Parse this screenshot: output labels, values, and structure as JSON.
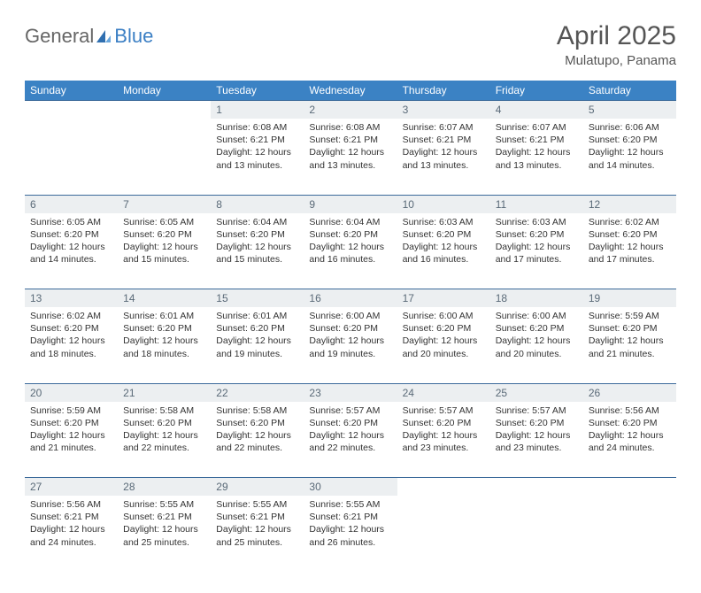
{
  "logo": {
    "text1": "General",
    "text2": "Blue"
  },
  "title": {
    "month": "April 2025",
    "location": "Mulatupo, Panama"
  },
  "colors": {
    "header_bg": "#3b82c4",
    "header_text": "#ffffff",
    "daynum_bg": "#eceff1",
    "daynum_text": "#5a6a78",
    "body_text": "#333333",
    "rule": "#3b6a9a",
    "logo_gray": "#666666",
    "logo_blue": "#3b7fc4"
  },
  "weekdays": [
    "Sunday",
    "Monday",
    "Tuesday",
    "Wednesday",
    "Thursday",
    "Friday",
    "Saturday"
  ],
  "weeks": [
    {
      "nums": [
        "",
        "",
        "1",
        "2",
        "3",
        "4",
        "5"
      ],
      "cells": [
        null,
        null,
        {
          "sunrise": "Sunrise: 6:08 AM",
          "sunset": "Sunset: 6:21 PM",
          "d1": "Daylight: 12 hours",
          "d2": "and 13 minutes."
        },
        {
          "sunrise": "Sunrise: 6:08 AM",
          "sunset": "Sunset: 6:21 PM",
          "d1": "Daylight: 12 hours",
          "d2": "and 13 minutes."
        },
        {
          "sunrise": "Sunrise: 6:07 AM",
          "sunset": "Sunset: 6:21 PM",
          "d1": "Daylight: 12 hours",
          "d2": "and 13 minutes."
        },
        {
          "sunrise": "Sunrise: 6:07 AM",
          "sunset": "Sunset: 6:21 PM",
          "d1": "Daylight: 12 hours",
          "d2": "and 13 minutes."
        },
        {
          "sunrise": "Sunrise: 6:06 AM",
          "sunset": "Sunset: 6:20 PM",
          "d1": "Daylight: 12 hours",
          "d2": "and 14 minutes."
        }
      ]
    },
    {
      "nums": [
        "6",
        "7",
        "8",
        "9",
        "10",
        "11",
        "12"
      ],
      "cells": [
        {
          "sunrise": "Sunrise: 6:05 AM",
          "sunset": "Sunset: 6:20 PM",
          "d1": "Daylight: 12 hours",
          "d2": "and 14 minutes."
        },
        {
          "sunrise": "Sunrise: 6:05 AM",
          "sunset": "Sunset: 6:20 PM",
          "d1": "Daylight: 12 hours",
          "d2": "and 15 minutes."
        },
        {
          "sunrise": "Sunrise: 6:04 AM",
          "sunset": "Sunset: 6:20 PM",
          "d1": "Daylight: 12 hours",
          "d2": "and 15 minutes."
        },
        {
          "sunrise": "Sunrise: 6:04 AM",
          "sunset": "Sunset: 6:20 PM",
          "d1": "Daylight: 12 hours",
          "d2": "and 16 minutes."
        },
        {
          "sunrise": "Sunrise: 6:03 AM",
          "sunset": "Sunset: 6:20 PM",
          "d1": "Daylight: 12 hours",
          "d2": "and 16 minutes."
        },
        {
          "sunrise": "Sunrise: 6:03 AM",
          "sunset": "Sunset: 6:20 PM",
          "d1": "Daylight: 12 hours",
          "d2": "and 17 minutes."
        },
        {
          "sunrise": "Sunrise: 6:02 AM",
          "sunset": "Sunset: 6:20 PM",
          "d1": "Daylight: 12 hours",
          "d2": "and 17 minutes."
        }
      ]
    },
    {
      "nums": [
        "13",
        "14",
        "15",
        "16",
        "17",
        "18",
        "19"
      ],
      "cells": [
        {
          "sunrise": "Sunrise: 6:02 AM",
          "sunset": "Sunset: 6:20 PM",
          "d1": "Daylight: 12 hours",
          "d2": "and 18 minutes."
        },
        {
          "sunrise": "Sunrise: 6:01 AM",
          "sunset": "Sunset: 6:20 PM",
          "d1": "Daylight: 12 hours",
          "d2": "and 18 minutes."
        },
        {
          "sunrise": "Sunrise: 6:01 AM",
          "sunset": "Sunset: 6:20 PM",
          "d1": "Daylight: 12 hours",
          "d2": "and 19 minutes."
        },
        {
          "sunrise": "Sunrise: 6:00 AM",
          "sunset": "Sunset: 6:20 PM",
          "d1": "Daylight: 12 hours",
          "d2": "and 19 minutes."
        },
        {
          "sunrise": "Sunrise: 6:00 AM",
          "sunset": "Sunset: 6:20 PM",
          "d1": "Daylight: 12 hours",
          "d2": "and 20 minutes."
        },
        {
          "sunrise": "Sunrise: 6:00 AM",
          "sunset": "Sunset: 6:20 PM",
          "d1": "Daylight: 12 hours",
          "d2": "and 20 minutes."
        },
        {
          "sunrise": "Sunrise: 5:59 AM",
          "sunset": "Sunset: 6:20 PM",
          "d1": "Daylight: 12 hours",
          "d2": "and 21 minutes."
        }
      ]
    },
    {
      "nums": [
        "20",
        "21",
        "22",
        "23",
        "24",
        "25",
        "26"
      ],
      "cells": [
        {
          "sunrise": "Sunrise: 5:59 AM",
          "sunset": "Sunset: 6:20 PM",
          "d1": "Daylight: 12 hours",
          "d2": "and 21 minutes."
        },
        {
          "sunrise": "Sunrise: 5:58 AM",
          "sunset": "Sunset: 6:20 PM",
          "d1": "Daylight: 12 hours",
          "d2": "and 22 minutes."
        },
        {
          "sunrise": "Sunrise: 5:58 AM",
          "sunset": "Sunset: 6:20 PM",
          "d1": "Daylight: 12 hours",
          "d2": "and 22 minutes."
        },
        {
          "sunrise": "Sunrise: 5:57 AM",
          "sunset": "Sunset: 6:20 PM",
          "d1": "Daylight: 12 hours",
          "d2": "and 22 minutes."
        },
        {
          "sunrise": "Sunrise: 5:57 AM",
          "sunset": "Sunset: 6:20 PM",
          "d1": "Daylight: 12 hours",
          "d2": "and 23 minutes."
        },
        {
          "sunrise": "Sunrise: 5:57 AM",
          "sunset": "Sunset: 6:20 PM",
          "d1": "Daylight: 12 hours",
          "d2": "and 23 minutes."
        },
        {
          "sunrise": "Sunrise: 5:56 AM",
          "sunset": "Sunset: 6:20 PM",
          "d1": "Daylight: 12 hours",
          "d2": "and 24 minutes."
        }
      ]
    },
    {
      "nums": [
        "27",
        "28",
        "29",
        "30",
        "",
        "",
        ""
      ],
      "cells": [
        {
          "sunrise": "Sunrise: 5:56 AM",
          "sunset": "Sunset: 6:21 PM",
          "d1": "Daylight: 12 hours",
          "d2": "and 24 minutes."
        },
        {
          "sunrise": "Sunrise: 5:55 AM",
          "sunset": "Sunset: 6:21 PM",
          "d1": "Daylight: 12 hours",
          "d2": "and 25 minutes."
        },
        {
          "sunrise": "Sunrise: 5:55 AM",
          "sunset": "Sunset: 6:21 PM",
          "d1": "Daylight: 12 hours",
          "d2": "and 25 minutes."
        },
        {
          "sunrise": "Sunrise: 5:55 AM",
          "sunset": "Sunset: 6:21 PM",
          "d1": "Daylight: 12 hours",
          "d2": "and 26 minutes."
        },
        null,
        null,
        null
      ]
    }
  ]
}
